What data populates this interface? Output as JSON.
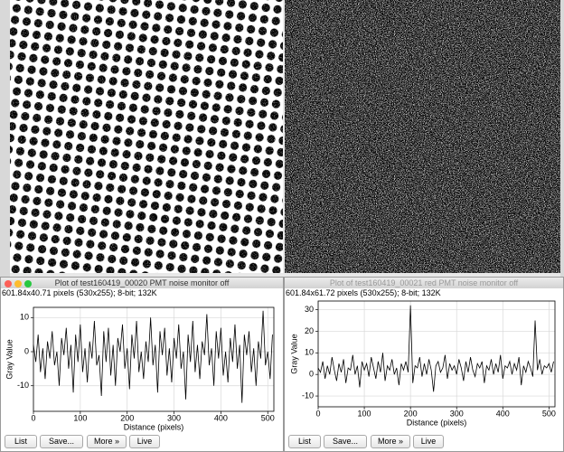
{
  "windows": [
    {
      "title": "Plot of test160419_00020 PMT noise monitor off",
      "info": "601.84x40.71 pixels (530x255); 8-bit; 132K",
      "buttons": [
        "List",
        "Save...",
        "More »",
        "Live"
      ]
    },
    {
      "title": "Plot of test160419_00021 red PMT noise monitor off",
      "info": "601.84x61.72 pixels (530x255); 8-bit; 132K",
      "buttons": [
        "List",
        "Save...",
        "More »",
        "Live"
      ]
    }
  ],
  "chart_data": [
    {
      "type": "line",
      "x_label": "Distance (pixels)",
      "y_label": "Gray Value",
      "color": "#000000",
      "grid": true,
      "xlim": [
        0,
        513
      ],
      "ylim": [
        -17.5,
        13
      ],
      "xticks": [
        0,
        100,
        200,
        300,
        400,
        500
      ],
      "yticks": [
        -10,
        0,
        10
      ],
      "x": [
        0,
        5,
        10,
        15,
        20,
        25,
        30,
        35,
        40,
        45,
        50,
        55,
        60,
        65,
        70,
        75,
        80,
        85,
        90,
        95,
        100,
        105,
        110,
        115,
        120,
        125,
        130,
        135,
        140,
        145,
        150,
        155,
        160,
        165,
        170,
        175,
        180,
        185,
        190,
        195,
        200,
        205,
        210,
        215,
        220,
        225,
        230,
        235,
        240,
        245,
        250,
        255,
        260,
        265,
        270,
        275,
        280,
        285,
        290,
        295,
        300,
        305,
        310,
        315,
        320,
        325,
        330,
        335,
        340,
        345,
        350,
        355,
        360,
        365,
        370,
        375,
        380,
        385,
        390,
        395,
        400,
        405,
        410,
        415,
        420,
        425,
        430,
        435,
        440,
        445,
        450,
        455,
        460,
        465,
        470,
        475,
        480,
        485,
        490,
        495,
        500,
        505,
        510
      ],
      "values": [
        2,
        -3,
        5,
        -6,
        1,
        -8,
        3,
        -2,
        6,
        -4,
        0,
        -10,
        4,
        -1,
        7,
        -5,
        2,
        -12,
        5,
        -3,
        8,
        -6,
        1,
        -9,
        3,
        -2,
        9,
        -4,
        -1,
        -13,
        6,
        -3,
        7,
        -7,
        2,
        -10,
        4,
        0,
        8,
        -5,
        1,
        -11,
        5,
        -2,
        9,
        -6,
        0,
        -8,
        3,
        -3,
        10,
        -4,
        2,
        -12,
        6,
        -1,
        7,
        -7,
        1,
        -9,
        4,
        -2,
        8,
        -5,
        0,
        -14,
        5,
        -3,
        9,
        -6,
        2,
        -8,
        3,
        -1,
        11,
        -4,
        1,
        -10,
        6,
        -2,
        7,
        -7,
        0,
        -9,
        4,
        -3,
        8,
        -5,
        2,
        -15,
        5,
        -1,
        6,
        -6,
        1,
        -10,
        3,
        -2,
        12,
        -4,
        0,
        -8,
        5
      ]
    },
    {
      "type": "line",
      "x_label": "Distance (pixels)",
      "y_label": "Gray Value",
      "color": "#000000",
      "grid": true,
      "xlim": [
        0,
        513
      ],
      "ylim": [
        -15,
        34
      ],
      "xticks": [
        0,
        100,
        200,
        300,
        400,
        500
      ],
      "yticks": [
        -10,
        0,
        10,
        20,
        30
      ],
      "x": [
        0,
        5,
        10,
        15,
        20,
        25,
        30,
        35,
        40,
        45,
        50,
        55,
        60,
        65,
        70,
        75,
        80,
        85,
        90,
        95,
        100,
        105,
        110,
        115,
        120,
        125,
        130,
        135,
        140,
        145,
        150,
        155,
        160,
        165,
        170,
        175,
        180,
        185,
        190,
        195,
        200,
        205,
        210,
        215,
        220,
        225,
        230,
        235,
        240,
        245,
        250,
        255,
        260,
        265,
        270,
        275,
        280,
        285,
        290,
        295,
        300,
        305,
        310,
        315,
        320,
        325,
        330,
        335,
        340,
        345,
        350,
        355,
        360,
        365,
        370,
        375,
        380,
        385,
        390,
        395,
        400,
        405,
        410,
        415,
        420,
        425,
        430,
        435,
        440,
        445,
        450,
        455,
        460,
        465,
        470,
        475,
        480,
        485,
        490,
        495,
        500,
        505,
        510
      ],
      "values": [
        3,
        1,
        6,
        -2,
        4,
        0,
        8,
        2,
        -3,
        5,
        1,
        7,
        -4,
        3,
        2,
        9,
        0,
        4,
        -6,
        6,
        2,
        5,
        -1,
        8,
        3,
        -2,
        6,
        1,
        10,
        -3,
        4,
        2,
        7,
        0,
        3,
        -5,
        5,
        2,
        6,
        1,
        32,
        -4,
        4,
        3,
        8,
        -1,
        5,
        0,
        7,
        2,
        -8,
        4,
        6,
        1,
        3,
        9,
        -2,
        5,
        2,
        4,
        0,
        7,
        3,
        -3,
        6,
        1,
        8,
        2,
        -1,
        5,
        3,
        6,
        -4,
        4,
        2,
        7,
        0,
        5,
        1,
        9,
        -2,
        4,
        3,
        6,
        0,
        5,
        2,
        8,
        -5,
        4,
        1,
        6,
        3,
        -1,
        25,
        2,
        7,
        0,
        4,
        3,
        5,
        1,
        6
      ]
    }
  ]
}
